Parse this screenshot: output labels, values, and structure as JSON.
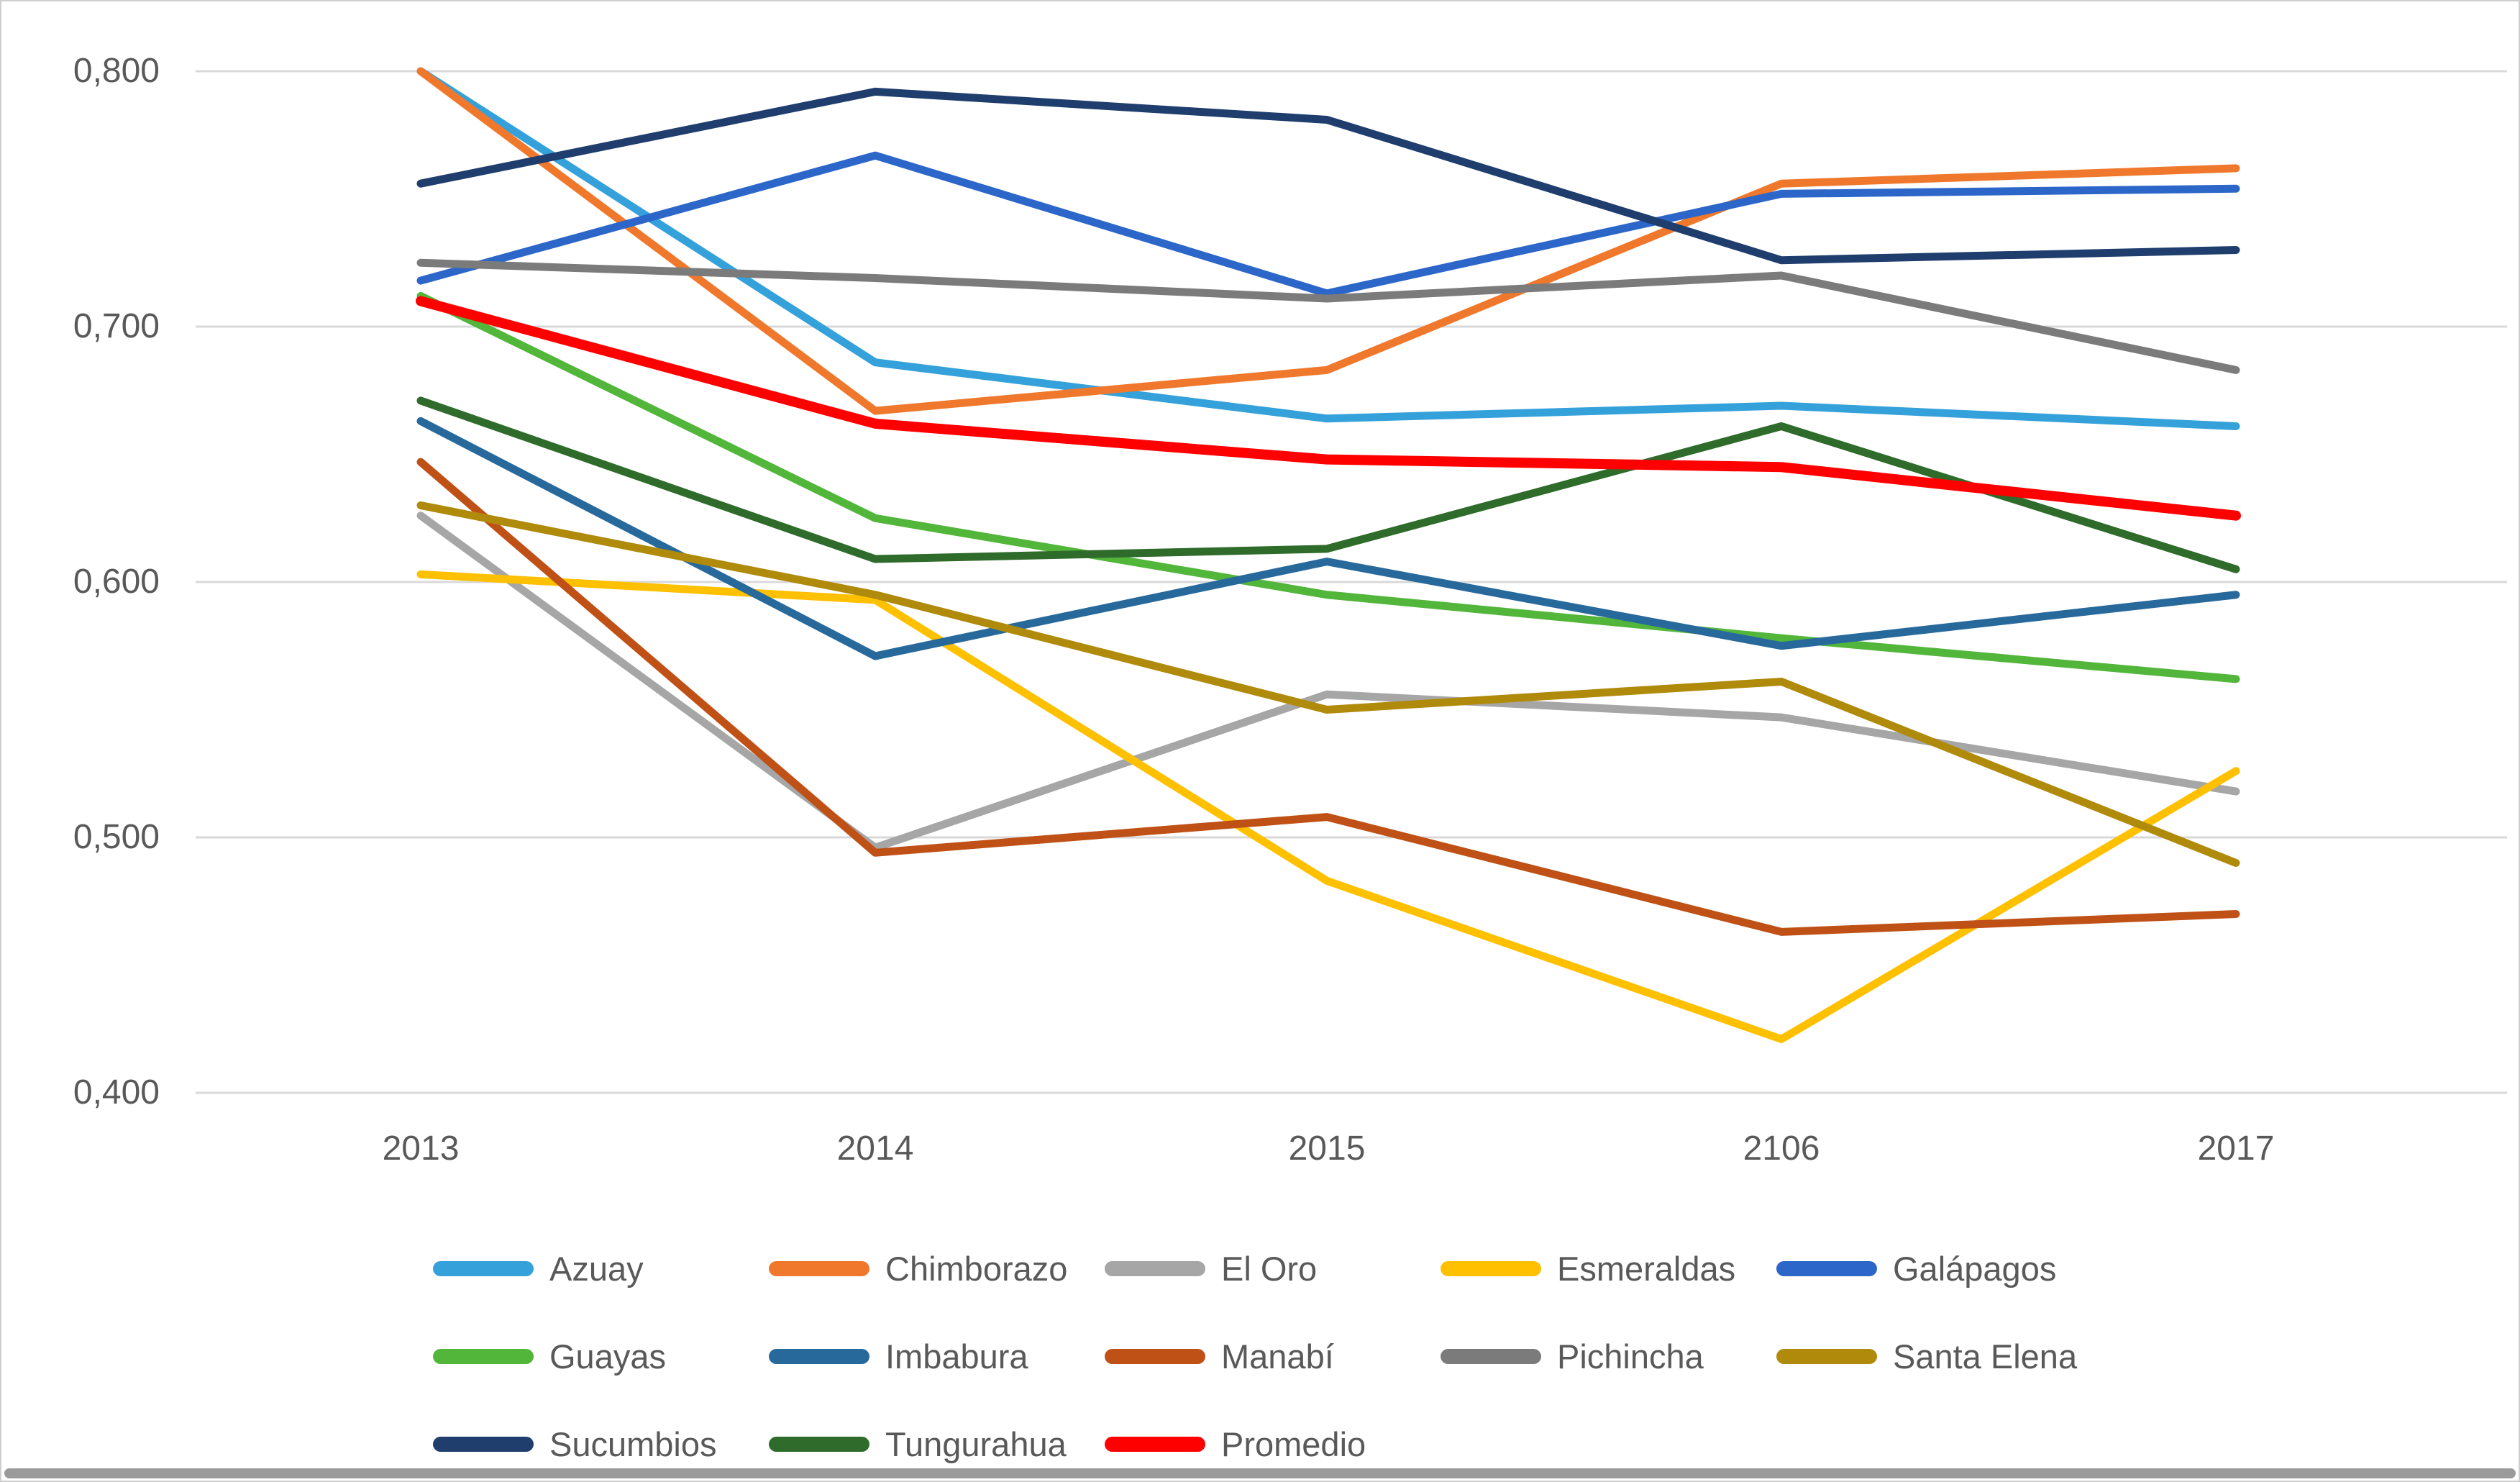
{
  "chart_data": {
    "type": "line",
    "title": "",
    "xlabel": "",
    "ylabel": "",
    "x_categories": [
      "2013",
      "2014",
      "2015",
      "2106",
      "2017"
    ],
    "y_ticks": [
      {
        "label": "0,800",
        "value": 0.8
      },
      {
        "label": "0,700",
        "value": 0.7
      },
      {
        "label": "0,600",
        "value": 0.6
      },
      {
        "label": "0,500",
        "value": 0.5
      },
      {
        "label": "0,400",
        "value": 0.4
      }
    ],
    "ylim": [
      0.4,
      0.8
    ],
    "grid": true,
    "legend_position": "bottom",
    "series": [
      {
        "name": "Azuay",
        "color": "#34A1DB",
        "values": [
          0.8,
          0.686,
          0.664,
          0.669,
          0.661
        ]
      },
      {
        "name": "Chimborazo",
        "color": "#F0782D",
        "values": [
          0.8,
          0.667,
          0.683,
          0.756,
          0.762
        ]
      },
      {
        "name": "El Oro",
        "color": "#A6A6A6",
        "values": [
          0.626,
          0.496,
          0.556,
          0.547,
          0.518
        ]
      },
      {
        "name": "Esmeraldas",
        "color": "#FFC000",
        "values": [
          0.603,
          0.593,
          0.483,
          0.421,
          0.526
        ]
      },
      {
        "name": "Galápagos",
        "color": "#2C66C9",
        "values": [
          0.718,
          0.767,
          0.713,
          0.752,
          0.754
        ]
      },
      {
        "name": "Guayas",
        "color": "#52B63A",
        "values": [
          0.712,
          0.625,
          0.595,
          0.578,
          0.562
        ]
      },
      {
        "name": "Imbabura",
        "color": "#28699C",
        "values": [
          0.663,
          0.571,
          0.608,
          0.575,
          0.595
        ]
      },
      {
        "name": "Manabí",
        "color": "#BF5117",
        "values": [
          0.647,
          0.494,
          0.508,
          0.463,
          0.47
        ]
      },
      {
        "name": "Pichincha",
        "color": "#7B7B7B",
        "values": [
          0.725,
          0.719,
          0.711,
          0.72,
          0.683
        ]
      },
      {
        "name": "Santa Elena",
        "color": "#AF8A0B",
        "values": [
          0.63,
          0.595,
          0.55,
          0.561,
          0.49
        ]
      },
      {
        "name": "Sucumbios",
        "color": "#1F3D6D",
        "values": [
          0.756,
          0.792,
          0.781,
          0.726,
          0.73
        ]
      },
      {
        "name": "Tungurahua",
        "color": "#2F6B2B",
        "values": [
          0.671,
          0.609,
          0.613,
          0.661,
          0.605
        ]
      },
      {
        "name": "Promedio",
        "color": "#FF0000",
        "values": [
          0.71,
          0.662,
          0.648,
          0.645,
          0.626
        ]
      }
    ],
    "legend_rows": [
      [
        "Azuay",
        "Chimborazo",
        "El Oro",
        "Esmeraldas",
        "Galápagos"
      ],
      [
        "Guayas",
        "Imbabura",
        "Manabí",
        "Pichincha",
        "Santa Elena"
      ],
      [
        "Sucumbios",
        "Tungurahua",
        "Promedio"
      ]
    ]
  },
  "style": {
    "gridline_color": "#D9D9D9",
    "tick_color": "#595959"
  }
}
